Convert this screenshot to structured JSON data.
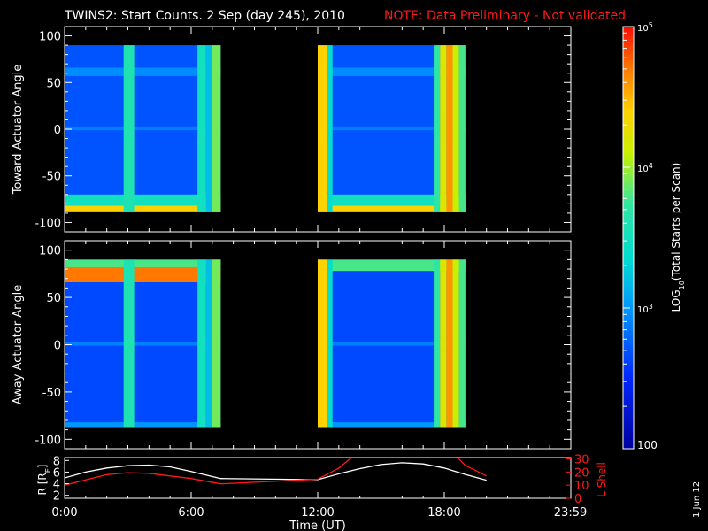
{
  "page": {
    "title": "TWINS2: Start Counts.  2 Sep (day 245), 2010",
    "note": "NOTE: Data Preliminary - Not validated",
    "date_stamp": "1 Jun 12"
  },
  "colors": {
    "background": "#000000",
    "foreground": "#ffffff",
    "note_red": "#ff1a1a",
    "rshell": "#ffffff",
    "lshell": "#ff1a1a"
  },
  "chart_data": [
    {
      "type": "heatmap",
      "ylabel": "Toward Actuator Angle",
      "ylim": [
        -110,
        110
      ],
      "yticks": [
        100,
        50,
        0,
        -50,
        -100
      ],
      "xlim": [
        0,
        24
      ],
      "data_blocks": [
        [
          0,
          7.4
        ],
        [
          12,
          19.0
        ]
      ],
      "angle_range": [
        -88,
        90
      ],
      "background_log_counts": 2.7,
      "horizontal_bands": [
        {
          "angle_lo": 57,
          "angle_hi": 66,
          "log": 2.95
        },
        {
          "angle_lo": -1,
          "angle_hi": 3,
          "log": 2.9
        },
        {
          "angle_lo": -82,
          "angle_hi": -70,
          "log": 3.5
        },
        {
          "angle_lo": -88,
          "angle_hi": -82,
          "log": 4.4
        }
      ],
      "vertical_bands": [
        {
          "t0": 2.8,
          "t1": 3.3,
          "log": 3.6
        },
        {
          "t0": 6.3,
          "t1": 6.7,
          "log": 3.5
        },
        {
          "t0": 6.7,
          "t1": 7.0,
          "log": 3.2
        },
        {
          "t0": 7.0,
          "t1": 7.4,
          "log": 3.9
        },
        {
          "t0": 12.0,
          "t1": 12.45,
          "log": 4.4
        },
        {
          "t0": 12.45,
          "t1": 12.7,
          "log": 3.4
        },
        {
          "t0": 17.5,
          "t1": 17.8,
          "log": 3.7
        },
        {
          "t0": 17.8,
          "t1": 18.1,
          "log": 4.2
        },
        {
          "t0": 18.1,
          "t1": 18.4,
          "log": 4.6
        },
        {
          "t0": 18.4,
          "t1": 18.7,
          "log": 4.1
        },
        {
          "t0": 18.7,
          "t1": 19.0,
          "log": 3.8
        }
      ]
    },
    {
      "type": "heatmap",
      "ylabel": "Away Actuator Angle",
      "ylim": [
        -110,
        110
      ],
      "yticks": [
        100,
        50,
        0,
        -50,
        -100
      ],
      "xlim": [
        0,
        24
      ],
      "data_blocks": [
        [
          0,
          7.4
        ],
        [
          12,
          19.0
        ]
      ],
      "angle_range": [
        -88,
        90
      ],
      "background_log_counts": 2.65,
      "horizontal_bands": [
        {
          "angle_lo": 78,
          "angle_hi": 90,
          "log": 3.8
        },
        {
          "angle_lo": -1,
          "angle_hi": 3,
          "log": 2.9
        },
        {
          "angle_lo": -88,
          "angle_hi": -82,
          "log": 3.0
        }
      ],
      "vertical_bands": [
        {
          "t0": 2.8,
          "t1": 3.3,
          "log": 3.6
        },
        {
          "t0": 6.3,
          "t1": 6.7,
          "log": 3.5
        },
        {
          "t0": 6.7,
          "t1": 7.0,
          "log": 3.2
        },
        {
          "t0": 7.0,
          "t1": 7.4,
          "log": 3.9
        },
        {
          "t0": 12.0,
          "t1": 12.45,
          "log": 4.4
        },
        {
          "t0": 12.45,
          "t1": 12.7,
          "log": 3.4
        },
        {
          "t0": 17.5,
          "t1": 17.8,
          "log": 3.7
        },
        {
          "t0": 17.8,
          "t1": 18.1,
          "log": 4.2
        },
        {
          "t0": 18.1,
          "t1": 18.4,
          "log": 4.6
        },
        {
          "t0": 18.4,
          "t1": 18.7,
          "log": 4.1
        },
        {
          "t0": 18.7,
          "t1": 19.0,
          "log": 3.8
        }
      ],
      "highlight": {
        "t0": 0,
        "t1": 7.4,
        "angle_lo": 66,
        "angle_hi": 82,
        "log": 4.7
      }
    },
    {
      "type": "line",
      "xlabel": "Time (UT)",
      "xlim": [
        0,
        24
      ],
      "xticks": [
        {
          "value": 0,
          "label": "0:00"
        },
        {
          "value": 6,
          "label": "6:00"
        },
        {
          "value": 12,
          "label": "12:00"
        },
        {
          "value": 18,
          "label": "18:00"
        },
        {
          "value": 23.98,
          "label": "23:59"
        }
      ],
      "left_axis": {
        "label": "R [R",
        "subscript": "E",
        "label_end": "]",
        "ylim": [
          1.5,
          8.5
        ],
        "ticks": [
          2,
          4,
          6,
          8
        ]
      },
      "right_axis": {
        "label": "L Shell",
        "ylim": [
          0,
          31
        ],
        "ticks": [
          0,
          10,
          20,
          30
        ]
      },
      "series": [
        {
          "axis": "left",
          "x": [
            0,
            1,
            2,
            3,
            4,
            5,
            6,
            7.4,
            12.0,
            13,
            14,
            15,
            16,
            17,
            18,
            19,
            20.0
          ],
          "y": [
            5.0,
            6.0,
            6.7,
            7.1,
            7.2,
            6.9,
            6.1,
            4.9,
            4.7,
            5.7,
            6.6,
            7.3,
            7.6,
            7.4,
            6.7,
            5.6,
            4.6
          ]
        },
        {
          "axis": "right",
          "x": [
            0,
            1,
            2,
            3,
            4,
            5,
            6,
            7.4,
            12.0,
            13,
            13.6,
            13.8,
            18.5,
            19,
            20.0
          ],
          "y": [
            10,
            14,
            18,
            19.5,
            19,
            17,
            15,
            11,
            14.5,
            23,
            31,
            33,
            33,
            25,
            17
          ]
        }
      ]
    }
  ],
  "colorbar": {
    "label_prefix": "LOG",
    "label_sub": "10",
    "label_suffix": "(Total Starts per Scan)",
    "range_log": [
      2.0,
      5.0
    ],
    "ticks": [
      {
        "log": 5,
        "base": "10",
        "exp": "5"
      },
      {
        "log": 4,
        "base": "10",
        "exp": "4"
      },
      {
        "log": 3,
        "base": "10",
        "exp": "3"
      },
      {
        "log": 2,
        "plain": "100"
      }
    ]
  }
}
